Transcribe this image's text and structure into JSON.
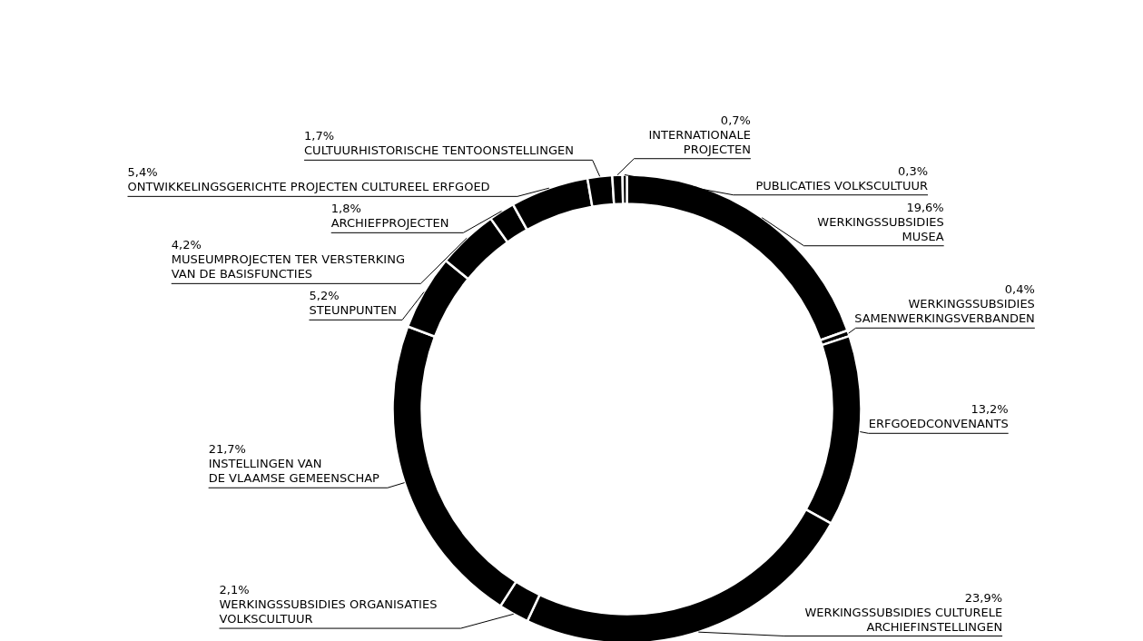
{
  "chart_data": {
    "type": "donut",
    "categories": [
      "WERKINGSSUBSIDIES\nMUSEA",
      "WERKINGSSUBSIDIES\nSAMENWERKINGSVERBANDEN",
      "ERFGOEDCONVENANTS",
      "WERKINGSSUBSIDIES CULTURELE\nARCHIEFINSTELLINGEN",
      "WERKINGSSUBSIDIES ORGANISATIES\nVOLKSCULTUUR",
      "INSTELLINGEN VAN\nDE VLAAMSE GEMEENSCHAP",
      "STEUNPUNTEN",
      "MUSEUMPROJECTEN TER VERSTERKING\nVAN DE BASISFUNCTIES",
      "ARCHIEFPROJECTEN",
      "ONTWIKKELINGSGERICHTE PROJECTEN CULTUREEL ERFGOED",
      "CULTUURHISTORISCHE TENTOONSTELLINGEN",
      "INTERNATIONALE\nPROJECTEN",
      "PUBLICATIES VOLKSCULTUUR"
    ],
    "values": [
      19.6,
      0.4,
      13.2,
      23.9,
      2.1,
      21.7,
      5.2,
      4.2,
      1.8,
      5.4,
      1.7,
      0.7,
      0.3
    ],
    "value_labels": [
      "19,6%",
      "0,4%",
      "13,2%",
      "23,9%",
      "2,1%",
      "21,7%",
      "5,2%",
      "4,2%",
      "1,8%",
      "5,4%",
      "1,7%",
      "0,7%",
      "0,3%"
    ],
    "colors": [
      "#000000",
      "#000000",
      "#000000",
      "#000000",
      "#000000",
      "#000000",
      "#000000",
      "#000000",
      "#000000",
      "#000000",
      "#000000",
      "#000000",
      "#000000"
    ]
  }
}
